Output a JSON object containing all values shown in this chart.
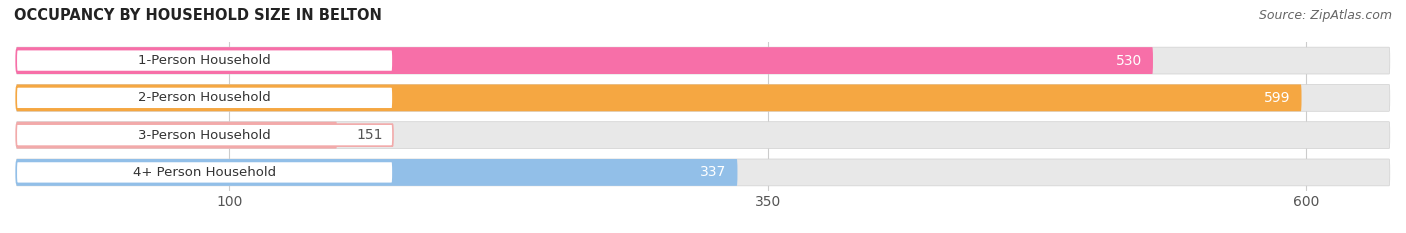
{
  "title": "OCCUPANCY BY HOUSEHOLD SIZE IN BELTON",
  "source": "Source: ZipAtlas.com",
  "categories": [
    "1-Person Household",
    "2-Person Household",
    "3-Person Household",
    "4+ Person Household"
  ],
  "values": [
    530,
    599,
    151,
    337
  ],
  "bar_colors": [
    "#f76fa8",
    "#f5a742",
    "#f2aaaa",
    "#92bfe8"
  ],
  "bar_bg_color": "#e8e8e8",
  "bar_bg_edge_color": "#d8d8d8",
  "xlim_min": 0,
  "xlim_max": 640,
  "xticks": [
    100,
    350,
    600
  ],
  "label_values": [
    "530",
    "599",
    "151",
    "337"
  ],
  "title_fontsize": 10.5,
  "source_fontsize": 9,
  "tick_fontsize": 10,
  "bar_label_fontsize": 10,
  "category_fontsize": 9.5,
  "background_color": "#ffffff",
  "pill_bg": "#ffffff",
  "pill_border_colors": [
    "#f76fa8",
    "#f5a742",
    "#f2aaaa",
    "#92bfe8"
  ]
}
